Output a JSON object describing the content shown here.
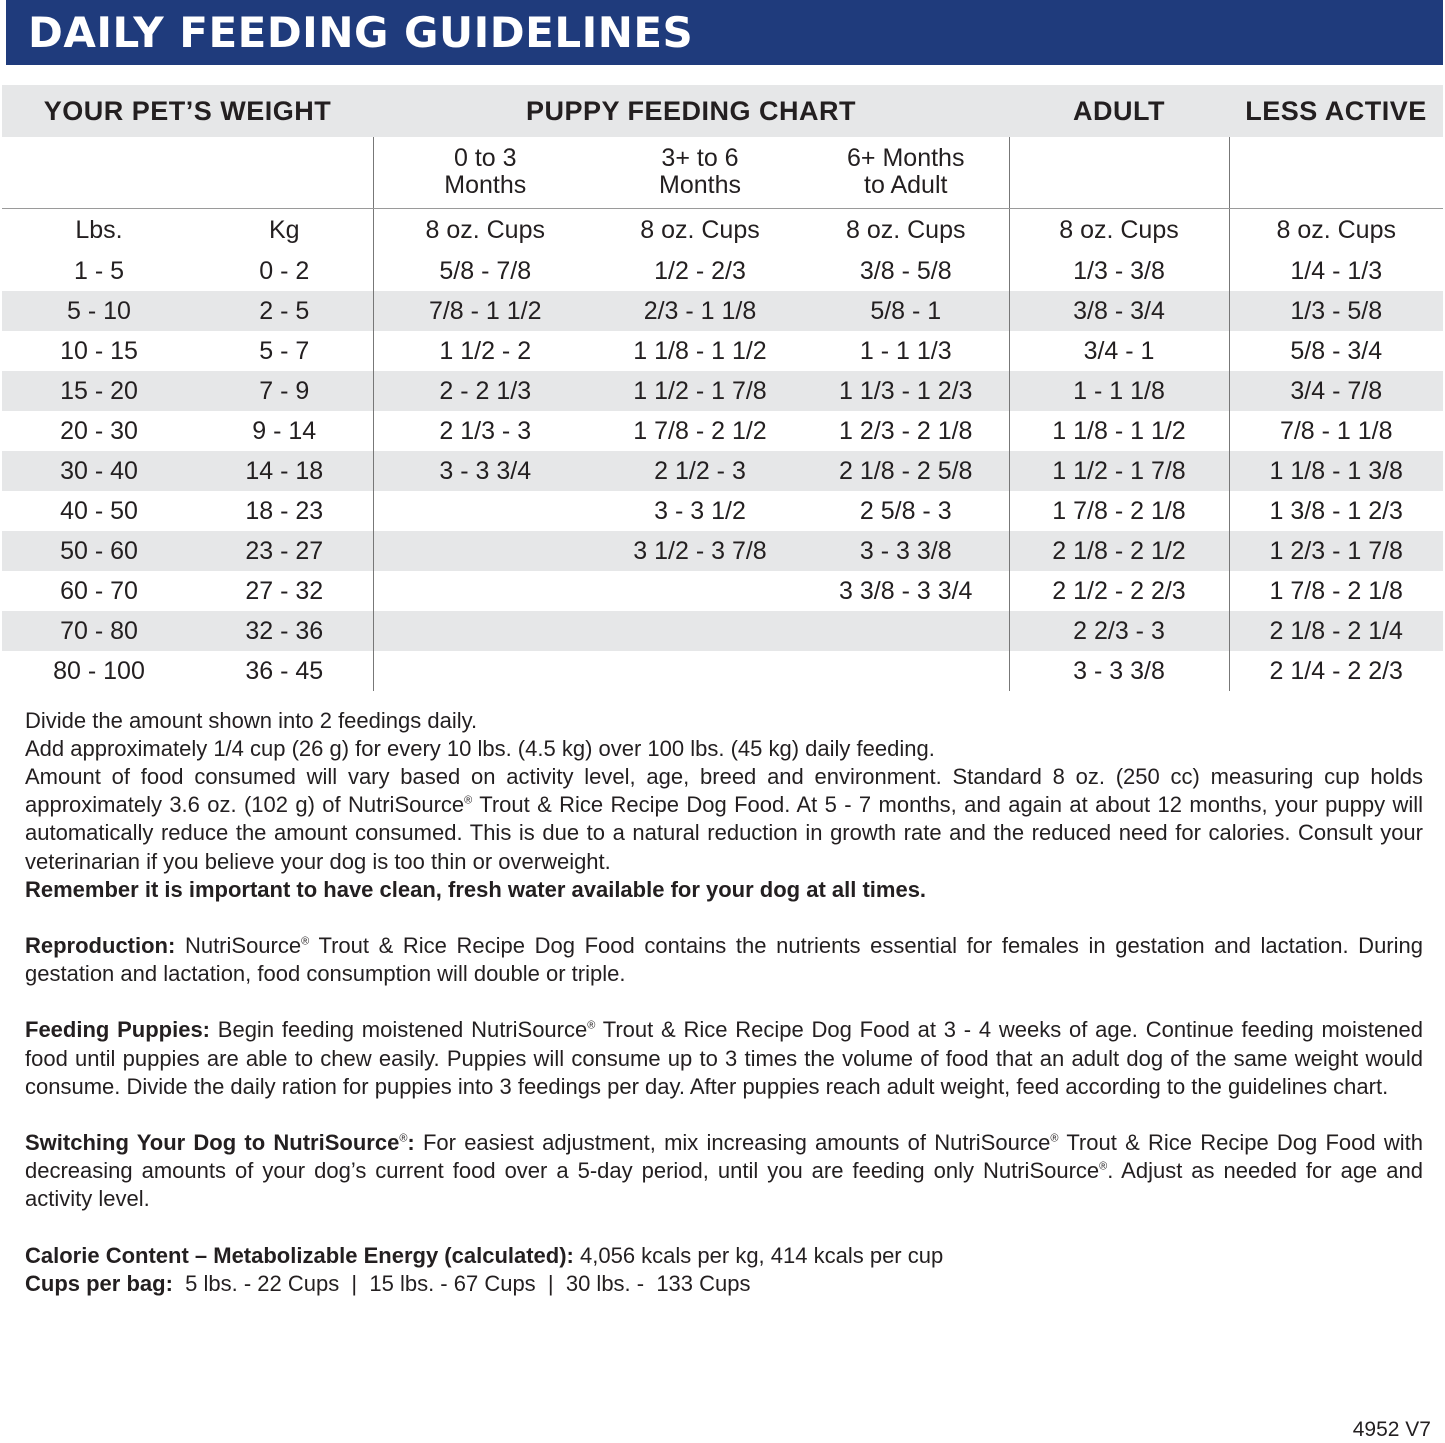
{
  "title": "DAILY FEEDING GUIDELINES",
  "table": {
    "group_headers": [
      "YOUR PET’S WEIGHT",
      "PUPPY FEEDING CHART",
      "ADULT",
      "LESS ACTIVE"
    ],
    "age_headers": [
      "0 to 3\nMonths",
      "3+ to 6\nMonths",
      "6+ Months\nto Adult"
    ],
    "units": [
      "Lbs.",
      "Kg",
      "8 oz. Cups",
      "8 oz. Cups",
      "8 oz. Cups",
      "8 oz. Cups",
      "8 oz. Cups"
    ],
    "rows": [
      [
        "1 - 5",
        "0 - 2",
        "5/8 - 7/8",
        "1/2 - 2/3",
        "3/8 - 5/8",
        "1/3 - 3/8",
        "1/4 - 1/3"
      ],
      [
        "5 - 10",
        "2 - 5",
        "7/8 - 1 1/2",
        "2/3 - 1 1/8",
        "5/8 - 1",
        "3/8 - 3/4",
        "1/3 - 5/8"
      ],
      [
        "10 - 15",
        "5 - 7",
        "1 1/2 - 2",
        "1 1/8 - 1 1/2",
        "1 - 1 1/3",
        "3/4 - 1",
        "5/8 - 3/4"
      ],
      [
        "15 - 20",
        "7 - 9",
        "2 - 2 1/3",
        "1 1/2 - 1 7/8",
        "1 1/3 - 1 2/3",
        "1 - 1 1/8",
        "3/4 - 7/8"
      ],
      [
        "20 - 30",
        "9 - 14",
        "2 1/3 - 3",
        "1 7/8 - 2 1/2",
        "1 2/3 - 2 1/8",
        "1 1/8 - 1 1/2",
        "7/8 - 1 1/8"
      ],
      [
        "30 - 40",
        "14 - 18",
        "3 - 3 3/4",
        "2 1/2 - 3",
        "2 1/8 - 2 5/8",
        "1 1/2 - 1 7/8",
        "1 1/8 - 1 3/8"
      ],
      [
        "40 - 50",
        "18 - 23",
        "",
        "3 - 3 1/2",
        "2 5/8 - 3",
        "1 7/8 - 2 1/8",
        "1 3/8 - 1 2/3"
      ],
      [
        "50 - 60",
        "23 - 27",
        "",
        "3 1/2 - 3 7/8",
        "3 - 3 3/8",
        "2 1/8 - 2 1/2",
        "1 2/3 - 1 7/8"
      ],
      [
        "60 - 70",
        "27 - 32",
        "",
        "",
        "3 3/8 - 3 3/4",
        "2 1/2 - 2 2/3",
        "1 7/8 - 2 1/8"
      ],
      [
        "70 - 80",
        "32 - 36",
        "",
        "",
        "",
        "2 2/3 - 3",
        "2 1/8 - 2 1/4"
      ],
      [
        "80 - 100",
        "36 - 45",
        "",
        "",
        "",
        "3 - 3 3/8",
        "2 1/4 - 2 2/3"
      ]
    ]
  },
  "notes": {
    "line1": "Divide the amount shown into 2 feedings daily.",
    "line2": "Add approximately 1/4 cup (26 g) for every 10 lbs. (4.5 kg) over 100 lbs. (45 kg) daily feeding.",
    "line3a": "Amount of food consumed will vary based on activity level, age, breed and environment. Standard 8 oz. (250 cc) measuring cup holds approximately 3.6 oz. (102 g)  of NutriSource",
    "line3b": " Trout & Rice Recipe Dog Food. At 5 - 7 months, and again at about 12 months, your puppy will automatically reduce the amount consumed. This is due to a natural reduction in growth rate and the reduced need for calories. Consult your veterinarian if you believe your dog is too thin or overweight.",
    "water": "Remember it is important to have clean, fresh water available for your dog at all times.",
    "reg": "®",
    "repro_label": "Reproduction:",
    "repro_a": " NutriSource",
    "repro_b": " Trout & Rice Recipe Dog Food contains the nutrients essential for females in gestation and lactation. During gestation and lactation, food consumption will double or triple.",
    "puppies_label": "Feeding Puppies:",
    "puppies_a": " Begin feeding moistened NutriSource",
    "puppies_b": " Trout & Rice Recipe Dog Food at 3 - 4 weeks of age. Continue feeding moistened food until puppies are able to chew easily. Puppies will consume up to 3 times the volume of food that an adult dog of the same weight would consume. Divide the daily ration for puppies into 3 feedings per day. After puppies reach adult weight, feed according to the guidelines chart.",
    "switch_label": "Switching Your Dog to NutriSource",
    "switch_colon": ":",
    "switch_a": " For easiest adjustment, mix increasing amounts of NutriSource",
    "switch_b": " Trout & Rice Recipe Dog Food with decreasing amounts of your dog’s current food over a 5-day period, until you are feeding only NutriSource",
    "switch_c": ". Adjust as needed for age and activity level.",
    "calorie_label": "Calorie Content – Metabolizable Energy (calculated):",
    "calorie_value": " 4,056 kcals per kg, 414 kcals per cup",
    "cups_label": "Cups per bag:",
    "cups_value": "  5 lbs. - 22 Cups  |  15 lbs. - 67 Cups  |  30 lbs. -  133 Cups"
  },
  "code": "4952 V7"
}
